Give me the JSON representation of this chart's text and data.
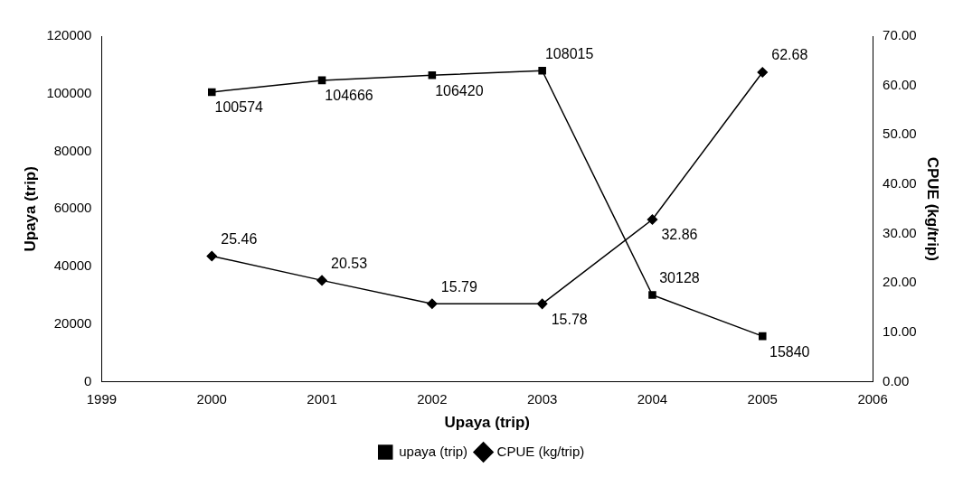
{
  "chart_data": {
    "type": "line",
    "xlabel": "Upaya (trip)",
    "ylabel": "Upaya (trip)",
    "y2label": "CPUE (kg/trip)",
    "x": [
      2000,
      2001,
      2002,
      2003,
      2004,
      2005
    ],
    "xlim": [
      1999,
      2006
    ],
    "xticks": [
      1999,
      2000,
      2001,
      2002,
      2003,
      2004,
      2005,
      2006
    ],
    "ylim": [
      0,
      120000
    ],
    "yticks": [
      0,
      20000,
      40000,
      60000,
      80000,
      100000,
      120000
    ],
    "y2lim": [
      0,
      70
    ],
    "y2ticks": [
      {
        "value": 0,
        "label": "0.00"
      },
      {
        "value": 10,
        "label": "10.00"
      },
      {
        "value": 20,
        "label": "20.00"
      },
      {
        "value": 30,
        "label": "30.00"
      },
      {
        "value": 40,
        "label": "40.00"
      },
      {
        "value": 50,
        "label": "50.00"
      },
      {
        "value": 60,
        "label": "60.00"
      },
      {
        "value": 70,
        "label": "70.00"
      }
    ],
    "series": [
      {
        "name": "upaya (trip)",
        "color": "#000000",
        "marker": "square",
        "values": [
          100574,
          104666,
          106420,
          108015,
          30128,
          15840
        ]
      },
      {
        "name": "CPUE (kg/trip)",
        "color": "#000000",
        "marker": "diamond",
        "axis": "y2",
        "values": [
          25.46,
          20.53,
          15.79,
          15.78,
          32.86,
          62.68
        ]
      }
    ],
    "data_labels": true,
    "legend": "bottom",
    "grid": false,
    "line_style": "solid"
  }
}
